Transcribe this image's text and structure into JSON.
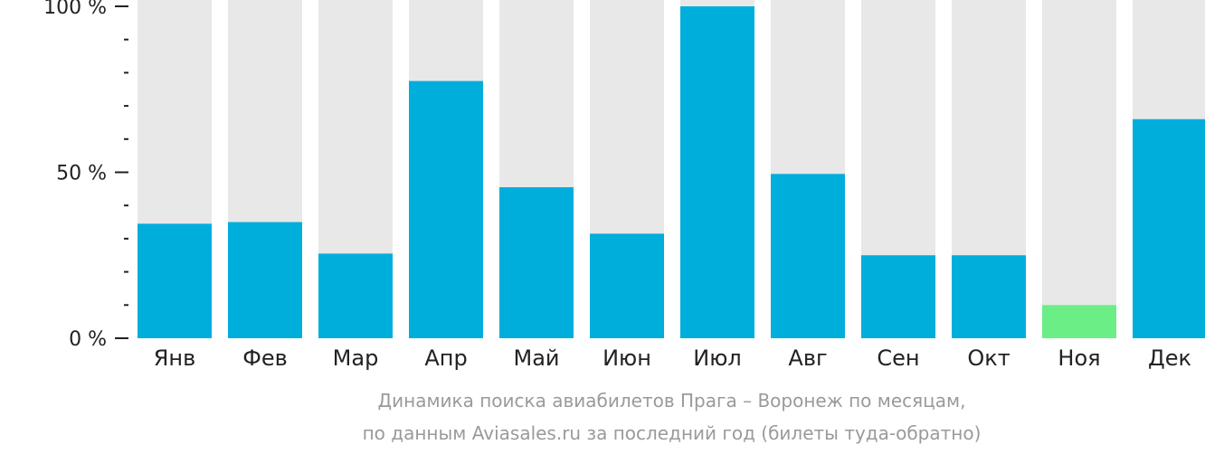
{
  "chart_data": {
    "type": "bar",
    "categories": [
      "Янв",
      "Фев",
      "Мар",
      "Апр",
      "Май",
      "Июн",
      "Июл",
      "Авг",
      "Сен",
      "Окт",
      "Ноя",
      "Дек"
    ],
    "values": [
      34.5,
      35,
      25.5,
      77.5,
      45.5,
      31.5,
      100,
      49.5,
      25,
      25,
      10,
      66
    ],
    "ylim": [
      0,
      100
    ],
    "y_ticks": [
      {
        "value": 100,
        "label": "100 %"
      },
      {
        "value": 50,
        "label": "50 %"
      },
      {
        "value": 0,
        "label": "0 %"
      }
    ],
    "minor_tick_step": 10,
    "highlight_category": "Ноя",
    "colors": {
      "bar": "#00aedc",
      "highlight": "#6cee87",
      "background_bar": "#e8e8e8",
      "axis": "#222222",
      "text": "#222222"
    },
    "grid": false,
    "legend": "none"
  },
  "caption": {
    "line1": "Динамика поиска авиабилетов Прага – Воронеж по месяцам,",
    "line2": "по данным Aviasales.ru за последний год (билеты туда-обратно)"
  }
}
